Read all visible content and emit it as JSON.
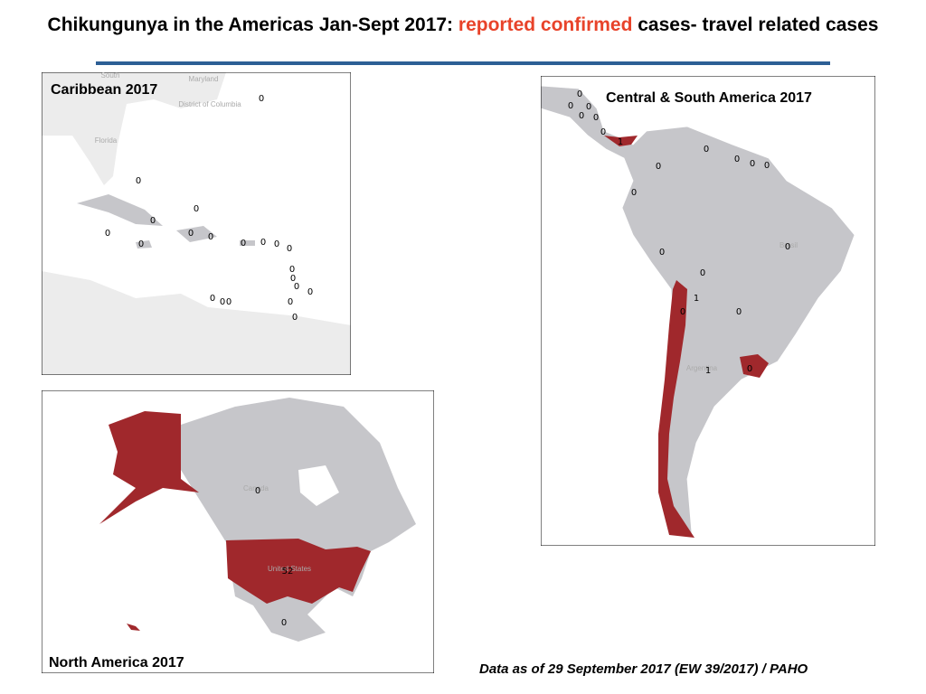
{
  "title": {
    "lead": "Chikungunya in the Americas Jan-Sept 2017: ",
    "highlight": "reported confirmed",
    "tail": " cases- travel related cases"
  },
  "panels": [
    {
      "title": "Caribbean 2017",
      "place_labels": [
        "South",
        "Maryland",
        "District of Columbia",
        "Florida"
      ],
      "counts": [
        0,
        0,
        0,
        0,
        0,
        0,
        0,
        0,
        0,
        0,
        0,
        0,
        0,
        0,
        0,
        0,
        0,
        0,
        0,
        0,
        0
      ]
    },
    {
      "title": "Central & South America  2017",
      "place_labels": [
        "Brasil",
        "Argentina"
      ],
      "counts": [
        0,
        0,
        0,
        0,
        0,
        0,
        1,
        0,
        0,
        0,
        0,
        0,
        0,
        0,
        0,
        0,
        0,
        0,
        1,
        0,
        1
      ]
    },
    {
      "title": "North America  2017",
      "place_labels": [
        "Canada",
        "United States"
      ],
      "counts": [
        0,
        52,
        0
      ]
    }
  ],
  "footnote": "Data as of 29 September 2017 (EW 39/2017) / PAHO"
}
